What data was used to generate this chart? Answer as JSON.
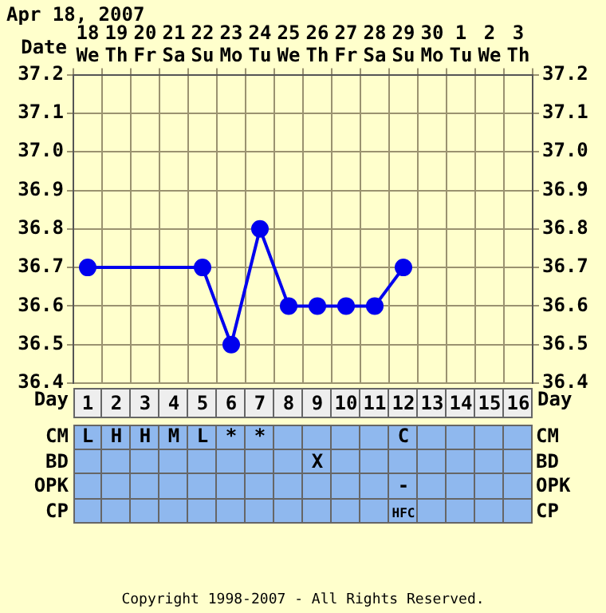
{
  "chart_data": {
    "type": "line",
    "title": "Apr 18, 2007",
    "xlabel": "Date",
    "x2label": "Day",
    "categories": [
      "18\nWe",
      "19\nTh",
      "20\nFr",
      "21\nSa",
      "22\nSu",
      "23\nMo",
      "24\nTu",
      "25\nWe",
      "26\nTh",
      "27\nFr",
      "28\nSa",
      "29\nSu",
      "30\nMo",
      "1\nTu",
      "2\nWe",
      "3\nTh"
    ],
    "series": [
      {
        "color": "#0000ee",
        "values": [
          36.7,
          null,
          null,
          null,
          36.7,
          36.5,
          36.8,
          36.6,
          36.6,
          36.6,
          36.6,
          36.7,
          null,
          null,
          null,
          null
        ]
      }
    ],
    "ylim": [
      36.4,
      37.2
    ],
    "yticks": [
      36.4,
      36.5,
      36.6,
      36.7,
      36.8,
      36.9,
      {
        "value": 37,
        "label": "37.0"
      },
      37.1,
      37.2
    ],
    "y2lim": [
      36.4,
      37.2
    ],
    "y2ticks": [
      36.4,
      36.5,
      36.6,
      36.7,
      36.8,
      36.9,
      {
        "value": 37,
        "label": "37.0"
      },
      37.1,
      37.2
    ],
    "x2lim": [
      0.5,
      16.5
    ],
    "x2ticks": [
      1,
      2,
      3,
      4,
      5,
      6,
      7,
      8,
      9,
      10,
      11,
      12,
      13,
      14,
      15,
      16
    ],
    "grid": true,
    "legend": false,
    "marker": "circle",
    "annotations": [
      "CM",
      "L",
      "H",
      "H",
      "M",
      "L",
      "*",
      "*",
      null,
      null,
      null,
      null,
      "C",
      null,
      null,
      null,
      null,
      "BD",
      null,
      null,
      null,
      null,
      null,
      null,
      null,
      null,
      "X",
      null,
      null,
      null,
      null,
      null,
      null,
      null,
      "OPK",
      null,
      null,
      null,
      null,
      null,
      null,
      null,
      null,
      null,
      null,
      null,
      "-",
      null,
      null,
      null,
      null,
      "CP",
      null,
      null,
      null,
      null,
      null,
      null,
      null,
      null,
      null,
      null,
      null,
      "HFC",
      null,
      null,
      null,
      null,
      "Copyright 1998-2007 - All Rights Reserved."
    ]
  }
}
